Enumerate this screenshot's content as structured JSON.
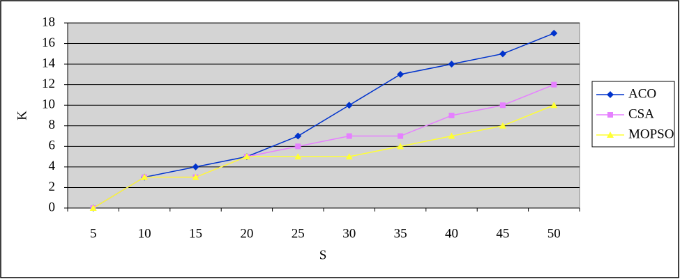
{
  "chart_data": {
    "type": "line",
    "x_label": "S",
    "y_label": "K",
    "categories": [
      "5",
      "10",
      "15",
      "20",
      "25",
      "30",
      "35",
      "40",
      "45",
      "50"
    ],
    "series": [
      {
        "name": "ACO",
        "color": "#0033cc",
        "marker": "diamond",
        "values": [
          0,
          3,
          4,
          5,
          7,
          10,
          13,
          14,
          15,
          17
        ]
      },
      {
        "name": "CSA",
        "color": "#e680ff",
        "marker": "square",
        "values": [
          0,
          3,
          3,
          5,
          6,
          7,
          7,
          9,
          10,
          12
        ]
      },
      {
        "name": "MOPSO",
        "color": "#ffff33",
        "marker": "triangle",
        "values": [
          0,
          3,
          3,
          5,
          5,
          5,
          6,
          7,
          8,
          10
        ]
      }
    ],
    "ylim": [
      0,
      18
    ],
    "yticks": [
      0,
      2,
      4,
      6,
      8,
      10,
      12,
      14,
      16,
      18
    ],
    "grid": true,
    "legend": "right"
  }
}
